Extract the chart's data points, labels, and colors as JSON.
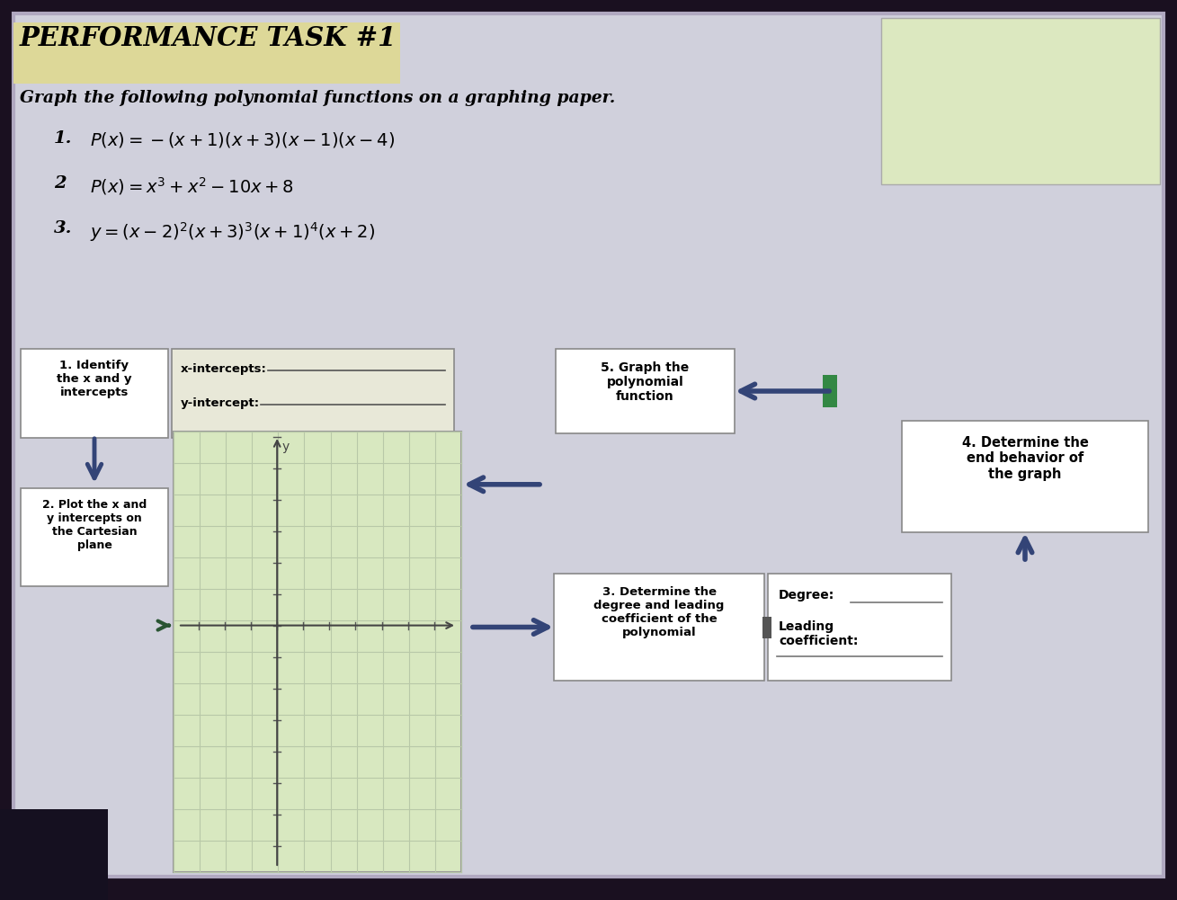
{
  "bg_outer": "#1a1020",
  "bg_slide": "#d8d8e0",
  "title_bg": "#ddd898",
  "title_text": "PERFORMANCE TASK #1",
  "subtitle": "Graph the following polynomial functions on a graphing paper.",
  "eq1_num": "1.",
  "eq1_body": "$P(x) = -(x+1)(x+3)(x-1)(x-4)$",
  "eq2_num": "2",
  "eq2_body": "$P(x) = x^3 + x^2 - 10x + 8$",
  "eq3_num": "3.",
  "eq3_body": "$y = (x-2)^2(x+3)^3(x+1)^4(x+2)$",
  "box1_text": "1. Identify\nthe x and y\nintercepts",
  "box_xi": "x-intercepts:",
  "box_yi": "y-intercept:",
  "box2_text": "2. Plot the x and\ny intercepts on\nthe Cartesian\nplane",
  "box3_text": "3. Determine the\ndegree and leading\ncoefficient of the\npolynomial",
  "box4_text": "4. Determine the\nend behavior of\nthe graph",
  "box5_text": "5. Graph the\npolynomial\nfunction",
  "deg_label": "Degree:",
  "lc_label": "Leading\ncoefficient:",
  "arrow_color": "#334477",
  "grid_color": "#b8c8a8",
  "graph_bg": "#d8e8c0"
}
